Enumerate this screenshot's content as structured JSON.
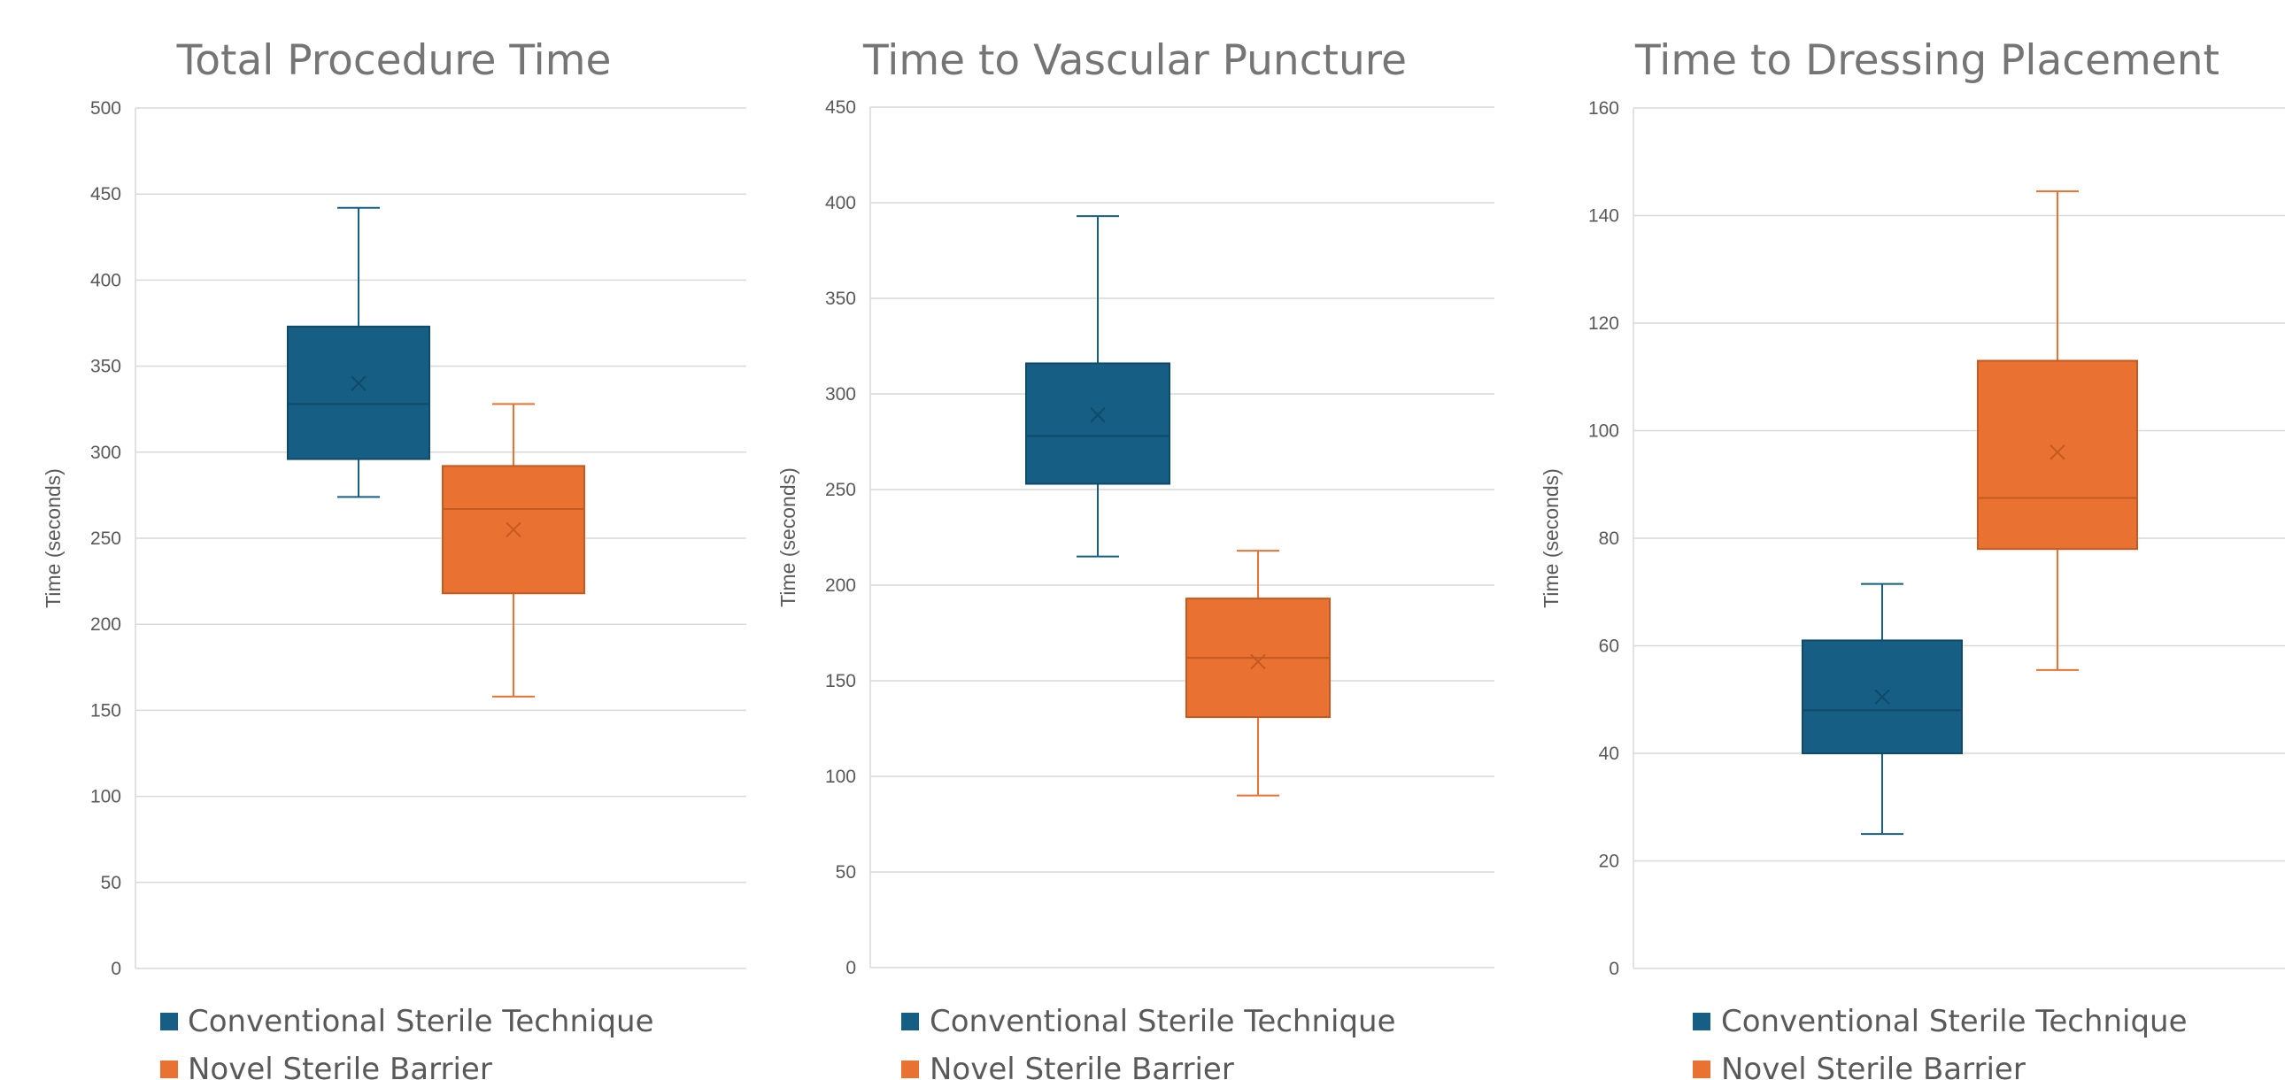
{
  "colors": {
    "conventional": "#165e83",
    "conventional_line": "#0f4a68",
    "novel": "#e97132",
    "novel_line": "#c45a1f",
    "grid": "#d9d9d9",
    "title": "#757575",
    "text": "#595959"
  },
  "chart_data": [
    {
      "type": "box",
      "title": "Total Procedure Time",
      "xlabel": "",
      "ylabel": "Time (seconds)",
      "ylim": [
        0,
        500
      ],
      "yticks": [
        0,
        50,
        100,
        150,
        200,
        250,
        300,
        350,
        400,
        450,
        500
      ],
      "grid": true,
      "legend_position": "bottom",
      "series": [
        {
          "name": "Conventional Sterile Technique",
          "min": 274,
          "q1": 296,
          "median": 328,
          "q3": 373,
          "max": 442,
          "mean": 340
        },
        {
          "name": "Novel Sterile Barrier",
          "min": 158,
          "q1": 218,
          "median": 267,
          "q3": 292,
          "max": 328,
          "mean": 255
        }
      ]
    },
    {
      "type": "box",
      "title": "Time to Vascular Puncture",
      "xlabel": "",
      "ylabel": "Time (seconds)",
      "ylim": [
        0,
        450
      ],
      "yticks": [
        0,
        50,
        100,
        150,
        200,
        250,
        300,
        350,
        400,
        450
      ],
      "grid": true,
      "legend_position": "bottom",
      "series": [
        {
          "name": "Conventional Sterile Technique",
          "min": 215,
          "q1": 253,
          "median": 278,
          "q3": 316,
          "max": 393,
          "mean": 289
        },
        {
          "name": "Novel Sterile Barrier",
          "min": 90,
          "q1": 131,
          "median": 162,
          "q3": 193,
          "max": 218,
          "mean": 160
        }
      ]
    },
    {
      "type": "box",
      "title": "Time to Dressing Placement",
      "xlabel": "",
      "ylabel": "Time (seconds)",
      "ylim": [
        0,
        160
      ],
      "yticks": [
        0,
        20,
        40,
        60,
        80,
        100,
        120,
        140,
        160
      ],
      "grid": true,
      "legend_position": "bottom",
      "series": [
        {
          "name": "Conventional Sterile Technique",
          "min": 25,
          "q1": 40,
          "median": 48,
          "q3": 61,
          "max": 71.5,
          "mean": 50.5
        },
        {
          "name": "Novel Sterile Barrier",
          "min": 55.5,
          "q1": 78,
          "median": 87.5,
          "q3": 113,
          "max": 144.5,
          "mean": 96
        }
      ]
    }
  ]
}
